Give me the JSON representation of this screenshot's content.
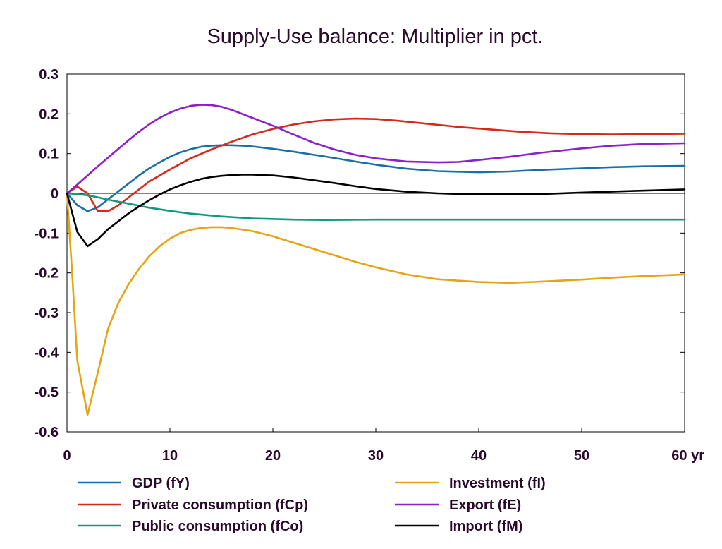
{
  "chart_data": {
    "type": "line",
    "title": "Supply-Use balance: Multiplier in pct.",
    "xlabel": "",
    "ylabel": "",
    "x_unit_label": "yr",
    "xlim": [
      0,
      60
    ],
    "ylim": [
      -0.6,
      0.3
    ],
    "xticks": [
      0,
      10,
      20,
      30,
      40,
      50,
      60
    ],
    "xtick_labels": [
      "0",
      "10",
      "20",
      "30",
      "40",
      "50",
      "60 yr"
    ],
    "yticks": [
      0.3,
      0.2,
      0.1,
      0,
      -0.1,
      -0.2,
      -0.3,
      -0.4,
      -0.5,
      -0.6
    ],
    "ytick_labels": [
      "0.3",
      "0.2",
      "0.1",
      "0",
      "-0.1",
      "-0.2",
      "-0.3",
      "-0.4",
      "-0.5",
      "-0.6"
    ],
    "grid": false,
    "zero_line": true,
    "legend_position": "bottom",
    "series": [
      {
        "name": "GDP (fY)",
        "color": "#1a6fa8",
        "points": [
          [
            0,
            0
          ],
          [
            1,
            -0.03
          ],
          [
            2,
            -0.045
          ],
          [
            3,
            -0.035
          ],
          [
            4,
            -0.015
          ],
          [
            5,
            0.005
          ],
          [
            6,
            0.025
          ],
          [
            7,
            0.045
          ],
          [
            8,
            0.063
          ],
          [
            9,
            0.078
          ],
          [
            10,
            0.092
          ],
          [
            11,
            0.103
          ],
          [
            12,
            0.111
          ],
          [
            13,
            0.117
          ],
          [
            14,
            0.12
          ],
          [
            15,
            0.121
          ],
          [
            16,
            0.121
          ],
          [
            17,
            0.12
          ],
          [
            18,
            0.118
          ],
          [
            20,
            0.112
          ],
          [
            22,
            0.105
          ],
          [
            25,
            0.093
          ],
          [
            28,
            0.08
          ],
          [
            30,
            0.072
          ],
          [
            33,
            0.062
          ],
          [
            36,
            0.056
          ],
          [
            40,
            0.053
          ],
          [
            43,
            0.055
          ],
          [
            46,
            0.059
          ],
          [
            50,
            0.063
          ],
          [
            53,
            0.066
          ],
          [
            56,
            0.068
          ],
          [
            60,
            0.069
          ]
        ]
      },
      {
        "name": "Private consumption (fCp)",
        "color": "#d6281b",
        "points": [
          [
            0,
            0
          ],
          [
            1,
            0.017
          ],
          [
            2,
            0.0
          ],
          [
            3,
            -0.045
          ],
          [
            4,
            -0.045
          ],
          [
            5,
            -0.03
          ],
          [
            6,
            -0.01
          ],
          [
            7,
            0.01
          ],
          [
            8,
            0.03
          ],
          [
            10,
            0.06
          ],
          [
            12,
            0.088
          ],
          [
            14,
            0.11
          ],
          [
            16,
            0.13
          ],
          [
            18,
            0.148
          ],
          [
            20,
            0.162
          ],
          [
            22,
            0.173
          ],
          [
            24,
            0.181
          ],
          [
            26,
            0.186
          ],
          [
            28,
            0.188
          ],
          [
            30,
            0.187
          ],
          [
            32,
            0.183
          ],
          [
            35,
            0.175
          ],
          [
            38,
            0.167
          ],
          [
            41,
            0.161
          ],
          [
            44,
            0.155
          ],
          [
            47,
            0.151
          ],
          [
            50,
            0.149
          ],
          [
            53,
            0.148
          ],
          [
            56,
            0.149
          ],
          [
            60,
            0.15
          ]
        ]
      },
      {
        "name": "Public consumption (fCo)",
        "color": "#12987a",
        "points": [
          [
            0,
            0
          ],
          [
            1,
            -0.002
          ],
          [
            2,
            -0.005
          ],
          [
            3,
            -0.01
          ],
          [
            4,
            -0.016
          ],
          [
            6,
            -0.026
          ],
          [
            8,
            -0.036
          ],
          [
            10,
            -0.044
          ],
          [
            12,
            -0.051
          ],
          [
            15,
            -0.058
          ],
          [
            18,
            -0.063
          ],
          [
            22,
            -0.066
          ],
          [
            25,
            -0.067
          ],
          [
            30,
            -0.066
          ],
          [
            35,
            -0.066
          ],
          [
            40,
            -0.066
          ],
          [
            45,
            -0.066
          ],
          [
            50,
            -0.066
          ],
          [
            55,
            -0.066
          ],
          [
            60,
            -0.066
          ]
        ]
      },
      {
        "name": "Investment (fI)",
        "color": "#e5a414",
        "points": [
          [
            0,
            0
          ],
          [
            0.5,
            -0.2
          ],
          [
            1,
            -0.42
          ],
          [
            2,
            -0.557
          ],
          [
            3,
            -0.45
          ],
          [
            4,
            -0.34
          ],
          [
            5,
            -0.275
          ],
          [
            6,
            -0.228
          ],
          [
            7,
            -0.19
          ],
          [
            8,
            -0.158
          ],
          [
            9,
            -0.133
          ],
          [
            10,
            -0.114
          ],
          [
            11,
            -0.1
          ],
          [
            12,
            -0.092
          ],
          [
            13,
            -0.087
          ],
          [
            14,
            -0.085
          ],
          [
            15,
            -0.085
          ],
          [
            16,
            -0.087
          ],
          [
            18,
            -0.095
          ],
          [
            20,
            -0.108
          ],
          [
            22,
            -0.124
          ],
          [
            25,
            -0.148
          ],
          [
            28,
            -0.172
          ],
          [
            30,
            -0.186
          ],
          [
            33,
            -0.204
          ],
          [
            36,
            -0.216
          ],
          [
            40,
            -0.223
          ],
          [
            43,
            -0.225
          ],
          [
            46,
            -0.222
          ],
          [
            50,
            -0.217
          ],
          [
            53,
            -0.212
          ],
          [
            56,
            -0.208
          ],
          [
            60,
            -0.204
          ]
        ]
      },
      {
        "name": "Export (fE)",
        "color": "#8a1fcc",
        "points": [
          [
            0,
            0
          ],
          [
            1,
            0.022
          ],
          [
            2,
            0.045
          ],
          [
            3,
            0.068
          ],
          [
            4,
            0.09
          ],
          [
            5,
            0.112
          ],
          [
            6,
            0.134
          ],
          [
            7,
            0.155
          ],
          [
            8,
            0.174
          ],
          [
            9,
            0.19
          ],
          [
            10,
            0.203
          ],
          [
            11,
            0.213
          ],
          [
            12,
            0.22
          ],
          [
            13,
            0.223
          ],
          [
            14,
            0.222
          ],
          [
            15,
            0.218
          ],
          [
            16,
            0.21
          ],
          [
            18,
            0.19
          ],
          [
            20,
            0.17
          ],
          [
            22,
            0.148
          ],
          [
            24,
            0.127
          ],
          [
            26,
            0.11
          ],
          [
            28,
            0.097
          ],
          [
            30,
            0.088
          ],
          [
            33,
            0.08
          ],
          [
            36,
            0.078
          ],
          [
            38,
            0.079
          ],
          [
            40,
            0.084
          ],
          [
            43,
            0.092
          ],
          [
            46,
            0.102
          ],
          [
            50,
            0.113
          ],
          [
            53,
            0.12
          ],
          [
            56,
            0.124
          ],
          [
            60,
            0.126
          ]
        ]
      },
      {
        "name": "Import (fM)",
        "color": "#000000",
        "points": [
          [
            0,
            0
          ],
          [
            1,
            -0.097
          ],
          [
            2,
            -0.133
          ],
          [
            3,
            -0.115
          ],
          [
            4,
            -0.09
          ],
          [
            5,
            -0.07
          ],
          [
            6,
            -0.05
          ],
          [
            7,
            -0.033
          ],
          [
            8,
            -0.017
          ],
          [
            9,
            -0.003
          ],
          [
            10,
            0.01
          ],
          [
            11,
            0.02
          ],
          [
            12,
            0.029
          ],
          [
            13,
            0.036
          ],
          [
            14,
            0.041
          ],
          [
            15,
            0.044
          ],
          [
            16,
            0.046
          ],
          [
            17,
            0.047
          ],
          [
            18,
            0.047
          ],
          [
            20,
            0.045
          ],
          [
            22,
            0.04
          ],
          [
            24,
            0.033
          ],
          [
            26,
            0.026
          ],
          [
            28,
            0.018
          ],
          [
            30,
            0.011
          ],
          [
            33,
            0.004
          ],
          [
            36,
            0.0
          ],
          [
            40,
            -0.003
          ],
          [
            43,
            -0.003
          ],
          [
            46,
            -0.002
          ],
          [
            50,
            0.002
          ],
          [
            55,
            0.006
          ],
          [
            60,
            0.01
          ]
        ]
      }
    ]
  }
}
